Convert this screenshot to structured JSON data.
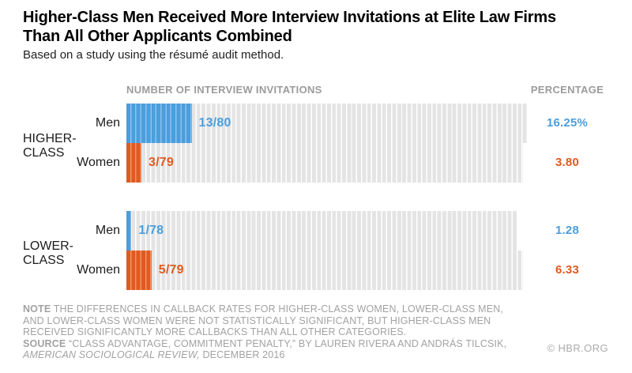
{
  "page": {
    "copyright": "© HBR.ORG"
  },
  "colors": {
    "men": "#4a9edd",
    "men_light": "#8dc2ec",
    "women": "#e05a21",
    "women_light": "#ee9767",
    "track": "#e4e4e4",
    "muted_text": "#9b9b9b"
  },
  "chart_data": {
    "type": "bar",
    "title": "Higher-Class Men Received More Interview Invitations at Elite Law Firms Than All Other Applicants Combined",
    "subtitle": "Based on a study using the résumé audit method.",
    "unit_headers": {
      "left": "NUMBER OF INTERVIEW INVITATIONS",
      "right": "PERCENTAGE"
    },
    "legend_position": "none",
    "grid": false,
    "groups": [
      {
        "label": "HIGHER-CLASS",
        "label_line1": "HIGHER-",
        "label_line2": "CLASS",
        "rows": [
          {
            "label": "Men",
            "invitations": 13,
            "total": 80,
            "value_label": "13/80",
            "percentage": 16.25,
            "percentage_label": "16.25%",
            "series": "men"
          },
          {
            "label": "Women",
            "invitations": 3,
            "total": 79,
            "value_label": "3/79",
            "percentage": 3.8,
            "percentage_label": "3.80",
            "series": "women"
          }
        ]
      },
      {
        "label": "LOWER-CLASS",
        "label_line1": "LOWER-",
        "label_line2": "CLASS",
        "rows": [
          {
            "label": "Men",
            "invitations": 1,
            "total": 78,
            "value_label": "1/78",
            "percentage": 1.28,
            "percentage_label": "1.28",
            "series": "men"
          },
          {
            "label": "Women",
            "invitations": 5,
            "total": 79,
            "value_label": "5/79",
            "percentage": 6.33,
            "percentage_label": "6.33",
            "series": "women"
          }
        ]
      }
    ]
  },
  "footnote": {
    "note_label": "NOTE",
    "note_lines": [
      "THE DIFFERENCES IN CALLBACK RATES FOR HIGHER-CLASS WOMEN, LOWER-CLASS MEN,",
      "AND LOWER-CLASS WOMEN WERE NOT STATISTICALLY SIGNIFICANT, BUT HIGHER-CLASS MEN",
      "RECEIVED SIGNIFICANTLY MORE CALLBACKS THAN ALL OTHER CATEGORIES."
    ],
    "source_label": "SOURCE",
    "source_line1": "“CLASS ADVANTAGE, COMMITMENT PENALTY,” BY LAUREN RIVERA AND ANDRÁS TILCSIK,",
    "source_italic": "AMERICAN SOCIOLOGICAL REVIEW,",
    "source_rest": "DECEMBER 2016"
  }
}
